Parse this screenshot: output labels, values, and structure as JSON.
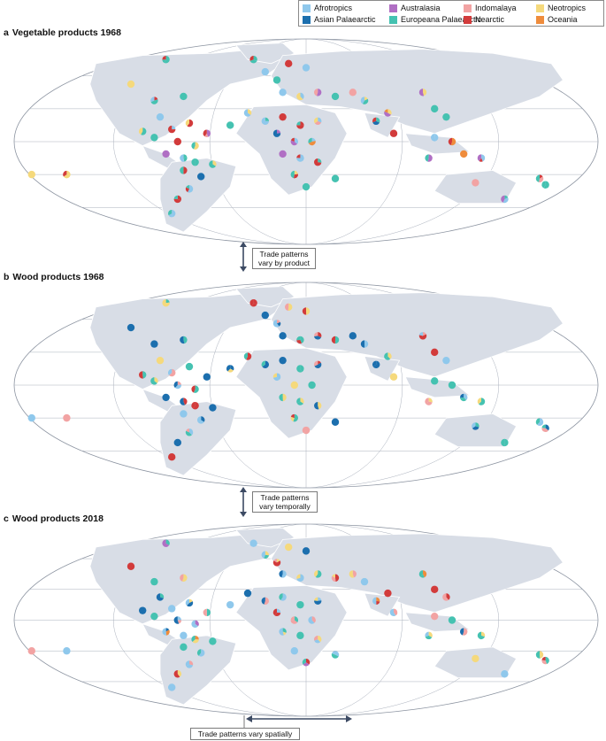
{
  "legend": {
    "items": [
      {
        "label": "Afrotropics",
        "color": "#8fc8ec"
      },
      {
        "label": "Australasia",
        "color": "#b06fc4"
      },
      {
        "label": "Indomalaya",
        "color": "#f2a3a3"
      },
      {
        "label": "Neotropics",
        "color": "#f5d97c"
      },
      {
        "label": "Asian Palaearctic",
        "color": "#1c6fae"
      },
      {
        "label": "Europeana Palaearctic",
        "color": "#45c2b1"
      },
      {
        "label": "Nearctic",
        "color": "#d23b3b"
      },
      {
        "label": "Oceania",
        "color": "#ef8c3c"
      }
    ]
  },
  "panels": [
    {
      "letter": "a",
      "title": "Vegetable products 1968"
    },
    {
      "letter": "b",
      "title": "Wood products 1968"
    },
    {
      "letter": "c",
      "title": "Wood products 2018"
    }
  ],
  "annotations": {
    "by_product": [
      "Trade patterns",
      "vary by product"
    ],
    "temporally": [
      "Trade patterns",
      "vary temporally"
    ],
    "spatially": "Trade patterns vary spatially"
  },
  "colors": {
    "land": "#d8dde6",
    "ocean": "#ffffff",
    "graticule": "#a9b0bc",
    "outline": "#8b93a0",
    "arrow": "#3c4a63"
  }
}
